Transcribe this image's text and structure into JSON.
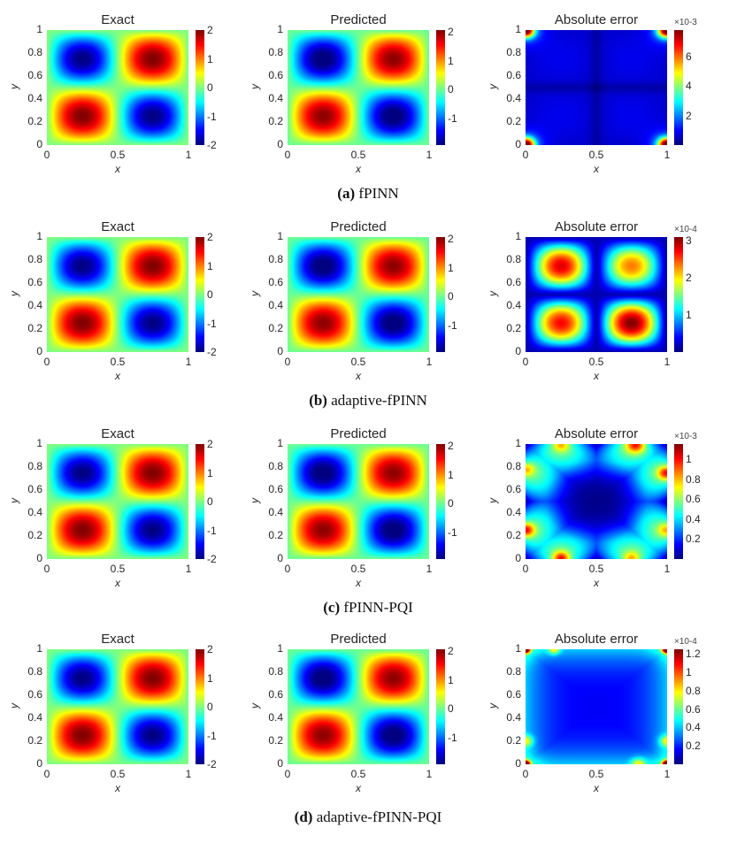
{
  "chart_data": [
    {
      "type": "heatmap",
      "caption_label": "(a)",
      "caption_text": "fPINN",
      "colormap": "jet",
      "panels": [
        {
          "title": "Exact",
          "xlabel": "x",
          "ylabel": "y",
          "xlim": [
            0,
            1
          ],
          "ylim": [
            0,
            1
          ],
          "xticks": [
            "0",
            "0.5",
            "1"
          ],
          "yticks": [
            "0",
            "0.2",
            "0.4",
            "0.6",
            "0.8",
            "1"
          ],
          "clim": [
            -2,
            2
          ],
          "cticks": [
            "-2",
            "-1",
            "0",
            "1",
            "2"
          ],
          "exponent": ""
        },
        {
          "title": "Predicted",
          "xlabel": "x",
          "ylabel": "y",
          "xlim": [
            0,
            1
          ],
          "ylim": [
            0,
            1
          ],
          "xticks": [
            "0",
            "0.5",
            "1"
          ],
          "yticks": [
            "0",
            "0.2",
            "0.4",
            "0.6",
            "0.8",
            "1"
          ],
          "clim": [
            -1.9,
            2.05
          ],
          "cticks": [
            "-1",
            "0",
            "1",
            "2"
          ],
          "exponent": ""
        },
        {
          "title": "Absolute error",
          "xlabel": "x",
          "ylabel": "y",
          "xlim": [
            0,
            1
          ],
          "ylim": [
            0,
            1
          ],
          "xticks": [
            "0",
            "0.5",
            "1"
          ],
          "yticks": [
            "0",
            "0.2",
            "0.4",
            "0.6",
            "0.8",
            "1"
          ],
          "clim": [
            0,
            7.8
          ],
          "cticks": [
            "2",
            "4",
            "6"
          ],
          "exponent": "×10-3",
          "pattern": "corners"
        }
      ]
    },
    {
      "type": "heatmap",
      "caption_label": "(b)",
      "caption_text": "adaptive-fPINN",
      "colormap": "jet",
      "panels": [
        {
          "title": "Exact",
          "xlabel": "x",
          "ylabel": "y",
          "xlim": [
            0,
            1
          ],
          "ylim": [
            0,
            1
          ],
          "xticks": [
            "0",
            "0.5",
            "1"
          ],
          "yticks": [
            "0",
            "0.2",
            "0.4",
            "0.6",
            "0.8",
            "1"
          ],
          "clim": [
            -2,
            2
          ],
          "cticks": [
            "-2",
            "-1",
            "0",
            "1",
            "2"
          ],
          "exponent": ""
        },
        {
          "title": "Predicted",
          "xlabel": "x",
          "ylabel": "y",
          "xlim": [
            0,
            1
          ],
          "ylim": [
            0,
            1
          ],
          "xticks": [
            "0",
            "0.5",
            "1"
          ],
          "yticks": [
            "0",
            "0.2",
            "0.4",
            "0.6",
            "0.8",
            "1"
          ],
          "clim": [
            -1.9,
            2.05
          ],
          "cticks": [
            "-1",
            "0",
            "1",
            "2"
          ],
          "exponent": ""
        },
        {
          "title": "Absolute error",
          "xlabel": "x",
          "ylabel": "y",
          "xlim": [
            0,
            1
          ],
          "ylim": [
            0,
            1
          ],
          "xticks": [
            "0",
            "0.5",
            "1"
          ],
          "yticks": [
            "0",
            "0.2",
            "0.4",
            "0.6",
            "0.8",
            "1"
          ],
          "clim": [
            0,
            3.1
          ],
          "cticks": [
            "1",
            "2",
            "3"
          ],
          "exponent": "×10-4",
          "pattern": "lobes"
        }
      ]
    },
    {
      "type": "heatmap",
      "caption_label": "(c)",
      "caption_text": "fPINN-PQI",
      "colormap": "jet",
      "panels": [
        {
          "title": "Exact",
          "xlabel": "x",
          "ylabel": "y",
          "xlim": [
            0,
            1
          ],
          "ylim": [
            0,
            1
          ],
          "xticks": [
            "0",
            "0.5",
            "1"
          ],
          "yticks": [
            "0",
            "0.2",
            "0.4",
            "0.6",
            "0.8",
            "1"
          ],
          "clim": [
            -2,
            2
          ],
          "cticks": [
            "-2",
            "-1",
            "0",
            "1",
            "2"
          ],
          "exponent": ""
        },
        {
          "title": "Predicted",
          "xlabel": "x",
          "ylabel": "y",
          "xlim": [
            0,
            1
          ],
          "ylim": [
            0,
            1
          ],
          "xticks": [
            "0",
            "0.5",
            "1"
          ],
          "yticks": [
            "0",
            "0.2",
            "0.4",
            "0.6",
            "0.8",
            "1"
          ],
          "clim": [
            -1.9,
            2.05
          ],
          "cticks": [
            "-1",
            "0",
            "1",
            "2"
          ],
          "exponent": ""
        },
        {
          "title": "Absolute error",
          "xlabel": "x",
          "ylabel": "y",
          "xlim": [
            0,
            1
          ],
          "ylim": [
            0,
            1
          ],
          "xticks": [
            "0",
            "0.5",
            "1"
          ],
          "yticks": [
            "0",
            "0.2",
            "0.4",
            "0.6",
            "0.8",
            "1"
          ],
          "clim": [
            0,
            1.15
          ],
          "cticks": [
            "0.2",
            "0.4",
            "0.6",
            "0.8",
            "1"
          ],
          "exponent": "×10-3",
          "pattern": "edges"
        }
      ]
    },
    {
      "type": "heatmap",
      "caption_label": "(d)",
      "caption_text": "adaptive-fPINN-PQI",
      "colormap": "jet",
      "panels": [
        {
          "title": "Exact",
          "xlabel": "x",
          "ylabel": "y",
          "xlim": [
            0,
            1
          ],
          "ylim": [
            0,
            1
          ],
          "xticks": [
            "0",
            "0.5",
            "1"
          ],
          "yticks": [
            "0",
            "0.2",
            "0.4",
            "0.6",
            "0.8",
            "1"
          ],
          "clim": [
            -2,
            2
          ],
          "cticks": [
            "-2",
            "-1",
            "0",
            "1",
            "2"
          ],
          "exponent": ""
        },
        {
          "title": "Predicted",
          "xlabel": "x",
          "ylabel": "y",
          "xlim": [
            0,
            1
          ],
          "ylim": [
            0,
            1
          ],
          "xticks": [
            "0",
            "0.5",
            "1"
          ],
          "yticks": [
            "0",
            "0.2",
            "0.4",
            "0.6",
            "0.8",
            "1"
          ],
          "clim": [
            -1.9,
            2.05
          ],
          "cticks": [
            "-1",
            "0",
            "1",
            "2"
          ],
          "exponent": ""
        },
        {
          "title": "Absolute error",
          "xlabel": "x",
          "ylabel": "y",
          "xlim": [
            0,
            1
          ],
          "ylim": [
            0,
            1
          ],
          "xticks": [
            "0",
            "0.5",
            "1"
          ],
          "yticks": [
            "0",
            "0.2",
            "0.4",
            "0.6",
            "0.8",
            "1"
          ],
          "clim": [
            0,
            1.25
          ],
          "cticks": [
            "0.2",
            "0.4",
            "0.6",
            "0.8",
            "1",
            "1.2"
          ],
          "exponent": "×10-4",
          "pattern": "corners-soft"
        }
      ]
    }
  ]
}
